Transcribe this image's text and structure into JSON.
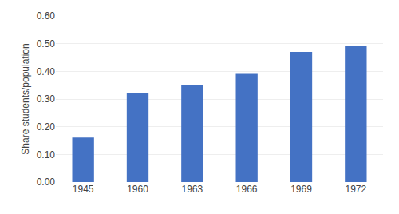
{
  "chart_data": {
    "type": "bar",
    "categories": [
      "1945",
      "1960",
      "1963",
      "1966",
      "1969",
      "1972"
    ],
    "values": [
      0.161,
      0.322,
      0.35,
      0.391,
      0.47,
      0.491
    ],
    "color": "#4472C4",
    "ylabel": "Share students/population",
    "ylim": [
      0.0,
      0.6
    ],
    "yticks": [
      {
        "value": 0.0,
        "label": "0.00"
      },
      {
        "value": 0.1,
        "label": "0.10"
      },
      {
        "value": 0.2,
        "label": "0.20"
      },
      {
        "value": 0.3,
        "label": "0.30"
      },
      {
        "value": 0.4,
        "label": "0.40"
      },
      {
        "value": 0.5,
        "label": "0.50"
      },
      {
        "value": 0.6,
        "label": "0.60"
      }
    ],
    "grid": true
  }
}
